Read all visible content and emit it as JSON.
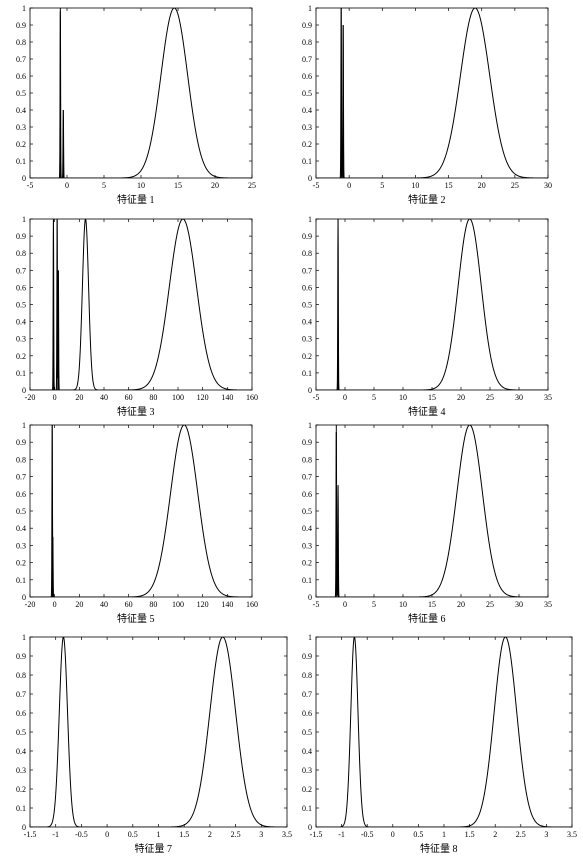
{
  "chart_data": [
    {
      "type": "line",
      "xlabel": "特征量 1",
      "xlim": [
        -5,
        25
      ],
      "ylim": [
        0,
        1
      ],
      "xticks": [
        -5,
        0,
        5,
        10,
        15,
        20,
        25
      ],
      "yticks": [
        0,
        0.1,
        0.2,
        0.3,
        0.4,
        0.5,
        0.6,
        0.7,
        0.8,
        0.9,
        1
      ],
      "spikes": [
        {
          "x": -0.9,
          "h": 1.0
        },
        {
          "x": -0.5,
          "h": 0.4
        }
      ],
      "peaks": [
        {
          "mu": 14.5,
          "sigma": 1.8,
          "h": 1.0
        }
      ]
    },
    {
      "type": "line",
      "xlabel": "特征量 2",
      "xlim": [
        -5,
        30
      ],
      "ylim": [
        0,
        1
      ],
      "xticks": [
        -5,
        0,
        5,
        10,
        15,
        20,
        25,
        30
      ],
      "yticks": [
        0,
        0.1,
        0.2,
        0.3,
        0.4,
        0.5,
        0.6,
        0.7,
        0.8,
        0.9,
        1
      ],
      "spikes": [
        {
          "x": -1.2,
          "h": 1.0
        },
        {
          "x": -0.9,
          "h": 0.9
        }
      ],
      "peaks": [
        {
          "mu": 19,
          "sigma": 2.2,
          "h": 1.0
        }
      ]
    },
    {
      "type": "line",
      "xlabel": "特征量 3",
      "xlim": [
        -20,
        160
      ],
      "ylim": [
        0,
        1
      ],
      "xticks": [
        -20,
        0,
        20,
        40,
        60,
        80,
        100,
        120,
        140,
        160
      ],
      "yticks": [
        0,
        0.1,
        0.2,
        0.3,
        0.4,
        0.5,
        0.6,
        0.7,
        0.8,
        0.9,
        1
      ],
      "spikes": [
        {
          "x": -1,
          "h": 1.0
        },
        {
          "x": 2,
          "h": 1.0
        },
        {
          "x": 3,
          "h": 0.7
        }
      ],
      "peaks": [
        {
          "mu": 25,
          "sigma": 2.5,
          "h": 1.0
        },
        {
          "mu": 104,
          "sigma": 11,
          "h": 1.0
        }
      ]
    },
    {
      "type": "line",
      "xlabel": "特征量 4",
      "xlim": [
        -5,
        35
      ],
      "ylim": [
        0,
        1
      ],
      "xticks": [
        -5,
        0,
        5,
        10,
        15,
        20,
        25,
        30,
        35
      ],
      "yticks": [
        0,
        0.1,
        0.2,
        0.3,
        0.4,
        0.5,
        0.6,
        0.7,
        0.8,
        0.9,
        1
      ],
      "spikes": [
        {
          "x": -1.2,
          "h": 1.0
        }
      ],
      "peaks": [
        {
          "mu": 21.5,
          "sigma": 2.0,
          "h": 1.0
        }
      ]
    },
    {
      "type": "line",
      "xlabel": "特征量 5",
      "xlim": [
        -20,
        160
      ],
      "ylim": [
        0,
        1
      ],
      "xticks": [
        -20,
        0,
        20,
        40,
        60,
        80,
        100,
        120,
        140,
        160
      ],
      "yticks": [
        0,
        0.1,
        0.2,
        0.3,
        0.4,
        0.5,
        0.6,
        0.7,
        0.8,
        0.9,
        1
      ],
      "spikes": [
        {
          "x": -2,
          "h": 1.0
        },
        {
          "x": -1.5,
          "h": 0.35
        }
      ],
      "peaks": [
        {
          "mu": 105,
          "sigma": 11,
          "h": 1.0
        }
      ]
    },
    {
      "type": "line",
      "xlabel": "特征量 6",
      "xlim": [
        -5,
        35
      ],
      "ylim": [
        0,
        1
      ],
      "xticks": [
        -5,
        0,
        5,
        10,
        15,
        20,
        25,
        30,
        35
      ],
      "yticks": [
        0,
        0.1,
        0.2,
        0.3,
        0.4,
        0.5,
        0.6,
        0.7,
        0.8,
        0.9,
        1
      ],
      "spikes": [
        {
          "x": -1.5,
          "h": 1.0
        },
        {
          "x": -1.2,
          "h": 0.65
        }
      ],
      "peaks": [
        {
          "mu": 21.5,
          "sigma": 2.2,
          "h": 1.0
        }
      ]
    },
    {
      "type": "line",
      "xlabel": "特征量 7",
      "xlim": [
        -1.5,
        3.5
      ],
      "ylim": [
        0,
        1
      ],
      "xticks": [
        -1.5,
        -1,
        -0.5,
        0,
        0.5,
        1,
        1.5,
        2,
        2.5,
        3,
        3.5
      ],
      "yticks": [
        0,
        0.1,
        0.2,
        0.3,
        0.4,
        0.5,
        0.6,
        0.7,
        0.8,
        0.9,
        1
      ],
      "spikes": [],
      "peaks": [
        {
          "mu": -0.85,
          "sigma": 0.08,
          "h": 1.0
        },
        {
          "mu": 2.25,
          "sigma": 0.25,
          "h": 1.0
        }
      ]
    },
    {
      "type": "line",
      "xlabel": "特征量 8",
      "xlim": [
        -1.5,
        3.5
      ],
      "ylim": [
        0,
        1
      ],
      "xticks": [
        -1.5,
        -1,
        -0.5,
        0,
        0.5,
        1,
        1.5,
        2,
        2.5,
        3,
        3.5
      ],
      "yticks": [
        0,
        0.1,
        0.2,
        0.3,
        0.4,
        0.5,
        0.6,
        0.7,
        0.8,
        0.9,
        1
      ],
      "spikes": [],
      "peaks": [
        {
          "mu": -0.75,
          "sigma": 0.07,
          "h": 1.0
        },
        {
          "mu": 2.2,
          "sigma": 0.22,
          "h": 1.0
        }
      ]
    }
  ]
}
